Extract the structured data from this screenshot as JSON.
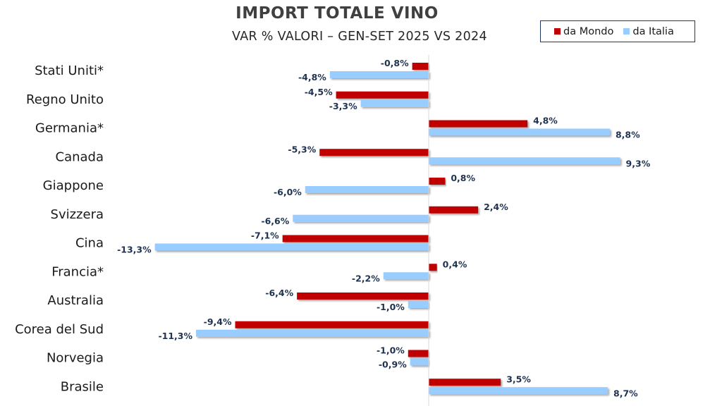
{
  "chart_data": {
    "type": "bar",
    "orientation": "horizontal",
    "title": "IMPORT TOTALE VINO",
    "subtitle": "VAR % VALORI – GEN-SET 2025 VS 2024",
    "xlabel": "",
    "ylabel": "",
    "xlim": [
      -13.3,
      9.3
    ],
    "grid": false,
    "legend_position": "top-right",
    "categories": [
      "Stati Uniti*",
      "Regno Unito",
      "Germania*",
      "Canada",
      "Giappone",
      "Svizzera",
      "Cina",
      "Francia*",
      "Australia",
      "Corea del Sud",
      "Norvegia",
      "Brasile"
    ],
    "series": [
      {
        "name": "da Mondo",
        "color": "#c00000",
        "values": [
          -0.8,
          -4.5,
          4.8,
          -5.3,
          0.8,
          2.4,
          -7.1,
          0.4,
          -6.4,
          -9.4,
          -1.0,
          3.5
        ],
        "labels": [
          "-0,8%",
          "-4,5%",
          "4,8%",
          "-5,3%",
          "0,8%",
          "2,4%",
          "-7,1%",
          "0,4%",
          "-6,4%",
          "-9,4%",
          "-1,0%",
          "3,5%"
        ]
      },
      {
        "name": "da Italia",
        "color": "#99ccff",
        "values": [
          -4.8,
          -3.3,
          8.8,
          9.3,
          -6.0,
          -6.6,
          -13.3,
          -2.2,
          -1.0,
          -11.3,
          -0.9,
          8.7
        ],
        "labels": [
          "-4,8%",
          "-3,3%",
          "8,8%",
          "9,3%",
          "-6,0%",
          "-6,6%",
          "-13,3%",
          "-2,2%",
          "-1,0%",
          "-11,3%",
          "-0,9%",
          "8,7%"
        ]
      }
    ]
  }
}
